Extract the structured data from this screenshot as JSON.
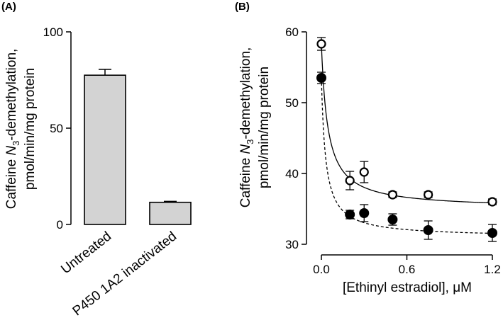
{
  "chart_data": [
    {
      "panel_label": "(A)",
      "type": "bar",
      "categories": [
        "Untreated",
        "P450 1A2 inactivated"
      ],
      "values": [
        77.5,
        11.5
      ],
      "errors": [
        3.0,
        0.5
      ],
      "ylim": [
        0,
        100
      ],
      "yticks": [
        "0",
        "50",
        "100"
      ],
      "ylabel_line1_pre": "Caffeine ",
      "ylabel_line1_italic": "N",
      "ylabel_line1_sub": "3",
      "ylabel_line1_post": "-demethylation,",
      "ylabel_line2": "pmol/min/mg protein",
      "bar_color": "#d3d3d3"
    },
    {
      "panel_label": "(B)",
      "type": "scatter",
      "xlabel_pre": "[Ethinyl estradiol], ",
      "xlabel_unit": "μM",
      "xlim": [
        0,
        1.2
      ],
      "ylim": [
        30,
        60
      ],
      "xticks": [
        "0.0",
        "0.6",
        "1.2"
      ],
      "yticks": [
        "30",
        "40",
        "50",
        "60"
      ],
      "ylabel_line1_pre": "Caffeine ",
      "ylabel_line1_italic": "N",
      "ylabel_line1_sub": "3",
      "ylabel_line1_post": "-demethylation,",
      "ylabel_line2": "pmol/min/mg protein",
      "series": [
        {
          "name": "open circles",
          "marker": "open",
          "line": "solid",
          "x": [
            0.0,
            0.2,
            0.3,
            0.5,
            0.75,
            1.2
          ],
          "y": [
            58.3,
            39.0,
            40.2,
            37.0,
            37.0,
            36.0
          ],
          "err": [
            0.9,
            1.3,
            1.5,
            0.4,
            0.4,
            0.4
          ],
          "fit": {
            "bottom": 35.0,
            "span": 23.3,
            "ic50": 0.045
          }
        },
        {
          "name": "filled circles",
          "marker": "filled",
          "line": "dashed",
          "x": [
            0.0,
            0.2,
            0.3,
            0.5,
            0.75,
            1.2
          ],
          "y": [
            53.5,
            34.2,
            34.4,
            33.5,
            32.0,
            31.6
          ],
          "err": [
            0.8,
            0.6,
            1.2,
            0.8,
            1.3,
            1.2
          ],
          "fit": {
            "bottom": 31.0,
            "span": 22.5,
            "ic50": 0.03
          }
        }
      ]
    }
  ]
}
